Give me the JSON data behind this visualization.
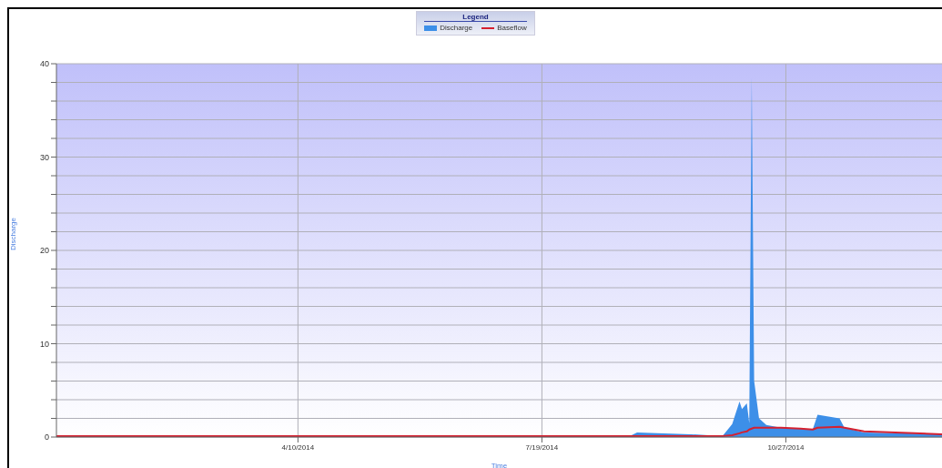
{
  "chart_data": {
    "type": "area",
    "xlabel": "Time",
    "ylabel": "Discharge",
    "legend_title": "Legend",
    "legend": "top",
    "grid": true,
    "x": [
      "2014-01-01",
      "2014-02-02",
      "2014-04-10",
      "2014-07-20",
      "2014-08-24",
      "2014-08-27",
      "2014-09-18",
      "2014-10-01",
      "2014-10-05",
      "2014-10-08",
      "2014-10-09",
      "2014-10-11",
      "2014-10-12",
      "2014-10-13",
      "2014-10-14",
      "2014-10-16",
      "2014-10-19",
      "2014-10-25",
      "2014-11-02",
      "2014-11-07",
      "2014-11-09",
      "2014-11-18",
      "2014-11-20",
      "2014-11-28",
      "2014-12-30"
    ],
    "series": [
      {
        "name": "Discharge",
        "color": "#3d8fe8",
        "values": [
          0.1,
          0.1,
          0.1,
          0.1,
          0.1,
          0.5,
          0.3,
          0.1,
          1.4,
          3.8,
          3.0,
          3.6,
          1.5,
          38.5,
          6,
          2,
          1.3,
          1.0,
          0.9,
          0.8,
          2.4,
          2.0,
          1.0,
          0.5,
          0.3
        ]
      },
      {
        "name": "Baseflow",
        "type": "line",
        "color": "#d42030",
        "values": [
          0.1,
          0.1,
          0.1,
          0.1,
          0.1,
          0.1,
          0.1,
          0.1,
          0.2,
          0.4,
          0.5,
          0.6,
          0.8,
          0.9,
          1.0,
          1.0,
          1.0,
          1.0,
          0.9,
          0.8,
          1.0,
          1.1,
          1.0,
          0.6,
          0.3
        ]
      }
    ],
    "xlim": [
      "2014-01-01",
      "2014-12-30"
    ],
    "xticks": [
      {
        "value": "2014-04-10",
        "label": "4/10/2014"
      },
      {
        "value": "2014-07-19",
        "label": "7/19/2014"
      },
      {
        "value": "2014-10-27",
        "label": "10/27/2014"
      }
    ],
    "ylim": [
      0,
      40
    ],
    "yticks": [
      0,
      {
        "value": 2,
        "label": null
      },
      {
        "value": 4,
        "label": null
      },
      {
        "value": 6,
        "label": null
      },
      {
        "value": 8,
        "label": null
      },
      10,
      {
        "value": 12,
        "label": null
      },
      {
        "value": 14,
        "label": null
      },
      {
        "value": 16,
        "label": null
      },
      {
        "value": 18,
        "label": null
      },
      20,
      {
        "value": 22,
        "label": null
      },
      {
        "value": 24,
        "label": null
      },
      {
        "value": 26,
        "label": null
      },
      {
        "value": 28,
        "label": null
      },
      30,
      {
        "value": 32,
        "label": null
      },
      {
        "value": 34,
        "label": null
      },
      {
        "value": 36,
        "label": null
      },
      {
        "value": 38,
        "label": null
      },
      40
    ]
  }
}
